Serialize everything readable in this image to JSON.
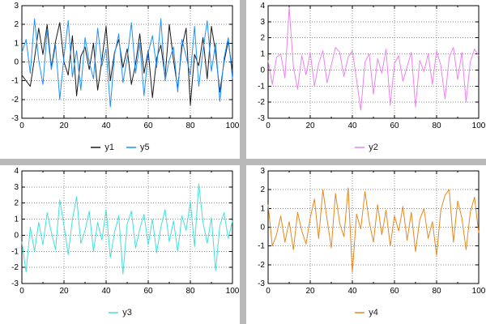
{
  "window": {
    "panel_background": "#ffffff",
    "divider_color": "#b9b9b9"
  },
  "chart_data": [
    {
      "type": "line",
      "title": "",
      "xlabel": "",
      "ylabel": "",
      "x": {
        "start": 0,
        "step": 2,
        "count": 51
      },
      "xlim": [
        0,
        100
      ],
      "ylim": [
        -3,
        3
      ],
      "xticks": [
        0,
        20,
        40,
        60,
        80,
        100
      ],
      "yticks": [
        -3,
        -2,
        -1,
        0,
        1,
        2,
        3
      ],
      "grid": true,
      "legend_position": "bottom-center",
      "series": [
        {
          "name": "y1",
          "color": "#1a1a1a",
          "values": [
            -0.7,
            -1.0,
            -1.3,
            0.2,
            1.8,
            0.4,
            2.0,
            -0.3,
            1.1,
            2.1,
            0.0,
            -0.7,
            1.4,
            -1.8,
            0.3,
            0.8,
            -0.4,
            1.0,
            -1.5,
            0.1,
            1.9,
            -1.0,
            0.5,
            1.2,
            -0.3,
            0.7,
            -1.2,
            -0.1,
            1.5,
            -0.6,
            0.6,
            -1.9,
            0.2,
            0.9,
            -0.8,
            2.0,
            0.1,
            -1.4,
            0.8,
            1.8,
            -2.3,
            0.4,
            -0.2,
            1.3,
            -0.9,
            1.9,
            0.5,
            -1.6,
            0.0,
            1.1,
            -0.5
          ]
        },
        {
          "name": "y5",
          "color": "#1e90ff",
          "values": [
            0.5,
            1.2,
            -0.6,
            2.3,
            0.1,
            -1.2,
            1.7,
            -0.4,
            0.9,
            -2.0,
            0.3,
            2.2,
            -0.8,
            0.6,
            -1.5,
            1.3,
            0.0,
            -0.9,
            1.8,
            -0.2,
            0.7,
            -2.4,
            0.4,
            1.5,
            -1.1,
            0.2,
            2.1,
            -0.6,
            1.0,
            -1.8,
            0.5,
            1.4,
            -0.3,
            2.3,
            -1.0,
            0.1,
            0.8,
            -1.6,
            1.2,
            0.3,
            -0.7,
            1.9,
            -1.3,
            0.6,
            2.2,
            -0.5,
            1.0,
            -2.1,
            0.2,
            1.3,
            -0.9
          ]
        }
      ]
    },
    {
      "type": "line",
      "title": "",
      "xlabel": "",
      "ylabel": "",
      "x": {
        "start": 0,
        "step": 2,
        "count": 51
      },
      "xlim": [
        0,
        100
      ],
      "ylim": [
        -3,
        4
      ],
      "xticks": [
        0,
        20,
        40,
        60,
        80,
        100
      ],
      "yticks": [
        -3,
        -2,
        -1,
        0,
        1,
        2,
        3,
        4
      ],
      "grid": true,
      "legend_position": "bottom-center",
      "series": [
        {
          "name": "y2",
          "color": "#ee82ee",
          "values": [
            0.6,
            -0.9,
            0.8,
            1.0,
            -0.5,
            3.9,
            0.2,
            -1.2,
            0.9,
            -0.3,
            1.1,
            -1.0,
            0.4,
            1.2,
            -0.8,
            0.3,
            1.4,
            1.1,
            -0.4,
            0.8,
            1.2,
            -0.6,
            -2.5,
            0.5,
            1.0,
            -1.5,
            0.7,
            -0.2,
            1.3,
            -2.2,
            0.4,
            0.9,
            -0.7,
            0.2,
            1.1,
            -2.3,
            0.6,
            -0.1,
            1.0,
            -0.9,
            1.2,
            0.3,
            -1.8,
            0.8,
            1.4,
            -0.6,
            1.1,
            -2.0,
            0.5,
            1.3,
            0.9
          ]
        }
      ]
    },
    {
      "type": "line",
      "title": "",
      "xlabel": "",
      "ylabel": "",
      "x": {
        "start": 0,
        "step": 2,
        "count": 51
      },
      "xlim": [
        0,
        100
      ],
      "ylim": [
        -3,
        4
      ],
      "xticks": [
        0,
        20,
        40,
        60,
        80,
        100
      ],
      "yticks": [
        -3,
        -2,
        -1,
        0,
        1,
        2,
        3,
        4
      ],
      "grid": true,
      "legend_position": "bottom-center",
      "series": [
        {
          "name": "y3",
          "color": "#42e0dc",
          "values": [
            -0.4,
            -2.3,
            0.5,
            -1.0,
            0.8,
            -0.6,
            1.4,
            0.2,
            -0.9,
            2.2,
            0.6,
            -1.2,
            1.0,
            2.4,
            -0.5,
            0.3,
            1.5,
            -1.0,
            0.8,
            -0.3,
            1.6,
            -1.4,
            0.2,
            1.2,
            -2.4,
            0.7,
            1.5,
            -0.8,
            0.4,
            1.3,
            -0.6,
            1.0,
            -1.1,
            0.5,
            1.6,
            -0.4,
            0.9,
            -1.0,
            1.2,
            0.3,
            2.1,
            -0.7,
            3.2,
            0.8,
            -0.5,
            1.1,
            -2.2,
            0.6,
            1.4,
            -0.2,
            0.9
          ]
        }
      ]
    },
    {
      "type": "line",
      "title": "",
      "xlabel": "",
      "ylabel": "",
      "x": {
        "start": 0,
        "step": 2,
        "count": 51
      },
      "xlim": [
        0,
        100
      ],
      "ylim": [
        -3,
        3
      ],
      "xticks": [
        0,
        20,
        40,
        60,
        80,
        100
      ],
      "yticks": [
        -3,
        -2,
        -1,
        0,
        1,
        2,
        3
      ],
      "grid": true,
      "legend_position": "bottom-center",
      "series": [
        {
          "name": "y4",
          "color": "#e8871d",
          "values": [
            1.2,
            -1.0,
            -0.4,
            0.6,
            -0.8,
            0.3,
            -1.2,
            0.8,
            -0.2,
            -0.9,
            0.5,
            1.5,
            -0.6,
            2.0,
            0.4,
            -1.1,
            1.8,
            0.2,
            -0.5,
            2.1,
            -2.4,
            0.7,
            -0.1,
            1.9,
            0.3,
            -0.8,
            1.2,
            -0.4,
            0.9,
            -1.0,
            0.6,
            -0.2,
            1.1,
            -0.7,
            0.8,
            -1.3,
            0.4,
            1.0,
            -0.6,
            0.3,
            -1.5,
            0.9,
            1.7,
            2.0,
            -0.8,
            1.4,
            0.5,
            -1.2,
            0.8,
            1.6,
            -0.3
          ]
        }
      ]
    }
  ]
}
